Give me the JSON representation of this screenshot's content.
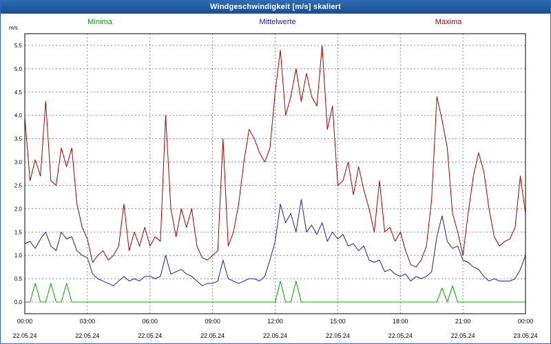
{
  "window": {
    "title": "Windgeschwindigkeit [m/s] skaliert"
  },
  "chart_data": {
    "type": "line",
    "title": "Windgeschwindigkeit [m/s] skaliert",
    "xlabel": "",
    "ylabel": "m/s",
    "ylim": [
      -0.25,
      5.75
    ],
    "grid": "dashed",
    "legend_position": "top",
    "step_minutes": 15,
    "y_ticks": [
      0.0,
      0.5,
      1.0,
      1.5,
      2.0,
      2.5,
      3.0,
      3.5,
      4.0,
      4.5,
      5.0,
      5.5
    ],
    "x_tick_labels": [
      "00:00",
      "03:00",
      "06:00",
      "09:00",
      "12:00",
      "15:00",
      "18:00",
      "21:00",
      "00:00"
    ],
    "x_date_labels": [
      "22.05.24",
      "22.05.24",
      "22.05.24",
      "22.05.24",
      "22.05.24",
      "22.05.24",
      "22.05.24",
      "22.05.24",
      "23.05.24"
    ],
    "series": [
      {
        "name": "Minima",
        "color": "#00a800",
        "values": [
          0,
          0,
          0.4,
          0,
          0,
          0.4,
          0,
          0,
          0.4,
          0,
          0,
          0,
          0,
          0,
          0,
          0,
          0,
          0,
          0,
          0,
          0,
          0,
          0,
          0,
          0,
          0,
          0,
          0,
          0,
          0,
          0,
          0,
          0,
          0,
          0,
          0,
          0,
          0,
          0,
          0,
          0,
          0,
          0,
          0,
          0,
          0,
          0,
          0,
          0,
          0.45,
          0,
          0,
          0.45,
          0,
          0,
          0,
          0,
          0,
          0,
          0,
          0,
          0,
          0,
          0,
          0,
          0,
          0,
          0,
          0,
          0,
          0,
          0,
          0,
          0,
          0,
          0,
          0,
          0,
          0,
          0,
          0.3,
          0,
          0.35,
          0,
          0,
          0,
          0,
          0,
          0,
          0,
          0,
          0,
          0,
          0,
          0,
          0,
          0
        ]
      },
      {
        "name": "Mittelwerte",
        "color": "#2020a8",
        "values": [
          1.25,
          1.3,
          1.15,
          1.35,
          1.5,
          1.2,
          1.1,
          1.5,
          1.35,
          1.4,
          1.1,
          1.0,
          0.95,
          0.6,
          0.5,
          0.45,
          0.4,
          0.35,
          0.45,
          0.55,
          0.45,
          0.5,
          0.45,
          0.55,
          0.55,
          0.5,
          0.55,
          1.0,
          0.6,
          0.65,
          0.7,
          0.6,
          0.55,
          0.45,
          0.35,
          0.4,
          0.4,
          0.45,
          0.9,
          0.5,
          0.45,
          0.4,
          0.45,
          0.5,
          0.5,
          0.45,
          0.55,
          0.9,
          1.3,
          2.1,
          1.7,
          1.9,
          1.5,
          2.2,
          1.5,
          1.65,
          1.45,
          1.7,
          1.3,
          1.5,
          1.35,
          1.45,
          1.2,
          1.25,
          1.1,
          1.2,
          0.9,
          0.85,
          0.9,
          0.65,
          0.7,
          0.6,
          0.55,
          0.6,
          0.45,
          0.55,
          0.5,
          0.55,
          0.65,
          1.4,
          1.85,
          1.3,
          1.15,
          1.2,
          0.9,
          0.85,
          0.75,
          0.7,
          0.55,
          0.45,
          0.5,
          0.45,
          0.45,
          0.45,
          0.5,
          0.7,
          1.0
        ]
      },
      {
        "name": "Maxima",
        "color": "#aa0000",
        "values": [
          3.95,
          2.6,
          3.05,
          2.7,
          4.3,
          2.6,
          2.5,
          3.3,
          2.9,
          3.3,
          2.1,
          1.6,
          1.35,
          0.85,
          1.0,
          1.1,
          0.9,
          1.0,
          1.2,
          2.1,
          1.1,
          1.5,
          1.2,
          1.6,
          1.2,
          1.4,
          1.3,
          4.0,
          2.0,
          1.4,
          2.0,
          1.6,
          2.0,
          1.2,
          0.95,
          0.9,
          1.0,
          1.1,
          3.5,
          1.2,
          1.5,
          2.1,
          3.0,
          3.7,
          3.5,
          3.2,
          3.0,
          3.3,
          4.5,
          5.4,
          4.0,
          4.4,
          5.0,
          4.3,
          4.9,
          4.4,
          4.2,
          5.5,
          3.7,
          4.2,
          2.5,
          2.6,
          3.0,
          2.3,
          2.9,
          2.4,
          2.0,
          1.5,
          2.6,
          1.5,
          1.6,
          1.3,
          1.5,
          1.1,
          0.8,
          0.75,
          0.9,
          1.2,
          2.2,
          4.4,
          3.9,
          3.3,
          1.9,
          1.5,
          1.0,
          1.9,
          2.7,
          3.2,
          2.8,
          2.0,
          1.4,
          1.2,
          1.3,
          1.35,
          1.6,
          2.7,
          1.9
        ]
      }
    ]
  }
}
